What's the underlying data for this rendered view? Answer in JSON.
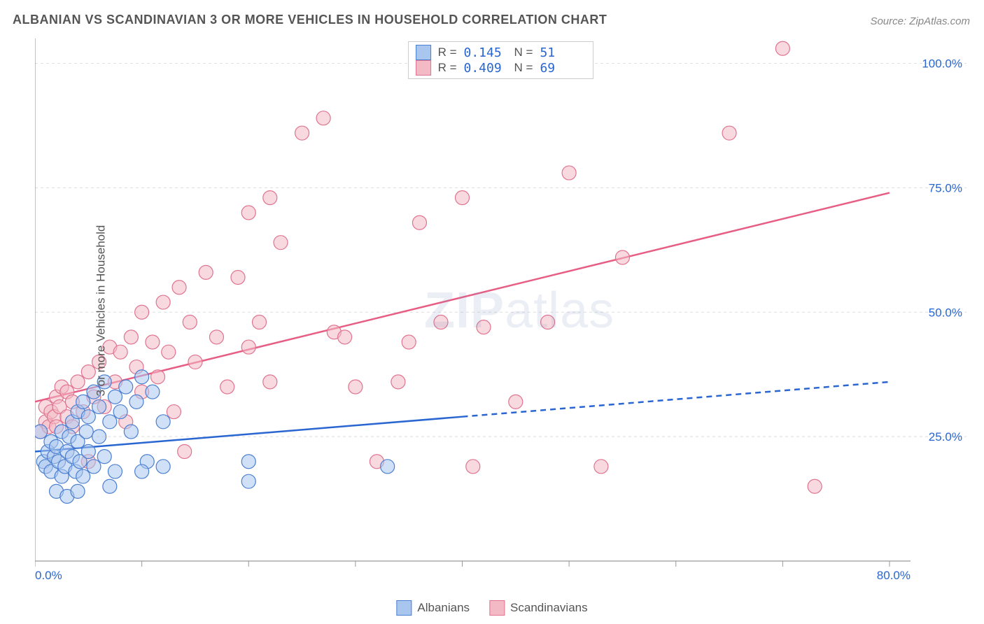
{
  "title": "ALBANIAN VS SCANDINAVIAN 3 OR MORE VEHICLES IN HOUSEHOLD CORRELATION CHART",
  "source": "Source: ZipAtlas.com",
  "ylabel": "3 or more Vehicles in Household",
  "watermark": "ZIPatlas",
  "chart": {
    "type": "scatter",
    "xlim": [
      0,
      80
    ],
    "ylim": [
      0,
      105
    ],
    "x_ticks": [
      0,
      10,
      20,
      30,
      40,
      50,
      60,
      70,
      80
    ],
    "x_tick_labels": {
      "0": "0.0%",
      "80": "80.0%"
    },
    "y_ticks": [
      25,
      50,
      75,
      100
    ],
    "y_tick_labels": {
      "25": "25.0%",
      "50": "50.0%",
      "75": "75.0%",
      "100": "100.0%"
    },
    "grid_color": "#dddddd",
    "axis_color": "#999999",
    "label_color": "#2966d1",
    "label_fontsize": 17,
    "background_color": "#ffffff",
    "marker_radius": 10,
    "marker_stroke_width": 1.2,
    "series": [
      {
        "name": "Albanians",
        "fill": "#a9c7ee",
        "fill_opacity": 0.55,
        "stroke": "#4b7fd1",
        "R": "0.145",
        "N": "51",
        "trend": {
          "x1": 0,
          "y1": 22,
          "x2": 80,
          "y2": 36,
          "solid_until_x": 40,
          "stroke": "#2966d1",
          "width": 2.5
        },
        "points": [
          [
            0.5,
            26
          ],
          [
            0.8,
            20
          ],
          [
            1,
            19
          ],
          [
            1.2,
            22
          ],
          [
            1.5,
            24
          ],
          [
            1.5,
            18
          ],
          [
            1.8,
            21
          ],
          [
            2,
            14
          ],
          [
            2,
            23
          ],
          [
            2.2,
            20
          ],
          [
            2.5,
            17
          ],
          [
            2.5,
            26
          ],
          [
            2.8,
            19
          ],
          [
            3,
            22
          ],
          [
            3,
            13
          ],
          [
            3.2,
            25
          ],
          [
            3.5,
            21
          ],
          [
            3.5,
            28
          ],
          [
            3.8,
            18
          ],
          [
            4,
            24
          ],
          [
            4,
            30
          ],
          [
            4.2,
            20
          ],
          [
            4.5,
            32
          ],
          [
            4.5,
            17
          ],
          [
            4.8,
            26
          ],
          [
            5,
            22
          ],
          [
            5,
            29
          ],
          [
            5.5,
            19
          ],
          [
            5.5,
            34
          ],
          [
            6,
            25
          ],
          [
            6,
            31
          ],
          [
            6.5,
            21
          ],
          [
            6.5,
            36
          ],
          [
            7,
            28
          ],
          [
            7.5,
            33
          ],
          [
            7.5,
            18
          ],
          [
            8,
            30
          ],
          [
            8.5,
            35
          ],
          [
            9,
            26
          ],
          [
            9.5,
            32
          ],
          [
            10,
            37
          ],
          [
            10.5,
            20
          ],
          [
            11,
            34
          ],
          [
            12,
            19
          ],
          [
            12,
            28
          ],
          [
            10,
            18
          ],
          [
            7,
            15
          ],
          [
            4,
            14
          ],
          [
            20,
            16
          ],
          [
            20,
            20
          ],
          [
            33,
            19
          ]
        ]
      },
      {
        "name": "Scandinavians",
        "fill": "#f3b9c5",
        "fill_opacity": 0.55,
        "stroke": "#e0738f",
        "R": "0.409",
        "N": "69",
        "trend": {
          "x1": 0,
          "y1": 32,
          "x2": 80,
          "y2": 74,
          "solid_until_x": 80,
          "stroke": "#e85d84",
          "width": 2.5
        },
        "points": [
          [
            0.5,
            26
          ],
          [
            1,
            28
          ],
          [
            1,
            31
          ],
          [
            1.3,
            27
          ],
          [
            1.5,
            30
          ],
          [
            1.8,
            29
          ],
          [
            2,
            33
          ],
          [
            2,
            27
          ],
          [
            2.3,
            31
          ],
          [
            2.5,
            35
          ],
          [
            3,
            29
          ],
          [
            3,
            34
          ],
          [
            3.5,
            32
          ],
          [
            3.5,
            27
          ],
          [
            4,
            36
          ],
          [
            4.5,
            30
          ],
          [
            5,
            38
          ],
          [
            5,
            20
          ],
          [
            5.5,
            33
          ],
          [
            6,
            40
          ],
          [
            6.5,
            31
          ],
          [
            7,
            43
          ],
          [
            7.5,
            36
          ],
          [
            8,
            42
          ],
          [
            8.5,
            28
          ],
          [
            9,
            45
          ],
          [
            9.5,
            39
          ],
          [
            10,
            50
          ],
          [
            10,
            34
          ],
          [
            11,
            44
          ],
          [
            11.5,
            37
          ],
          [
            12,
            52
          ],
          [
            12.5,
            42
          ],
          [
            13,
            30
          ],
          [
            13.5,
            55
          ],
          [
            14,
            22
          ],
          [
            14.5,
            48
          ],
          [
            15,
            40
          ],
          [
            16,
            58
          ],
          [
            17,
            45
          ],
          [
            18,
            35
          ],
          [
            19,
            57
          ],
          [
            20,
            43
          ],
          [
            20,
            70
          ],
          [
            21,
            48
          ],
          [
            22,
            36
          ],
          [
            22,
            73
          ],
          [
            23,
            64
          ],
          [
            25,
            86
          ],
          [
            27,
            89
          ],
          [
            28,
            46
          ],
          [
            29,
            45
          ],
          [
            30,
            35
          ],
          [
            32,
            20
          ],
          [
            34,
            36
          ],
          [
            35,
            44
          ],
          [
            36,
            68
          ],
          [
            38,
            48
          ],
          [
            40,
            73
          ],
          [
            41,
            19
          ],
          [
            42,
            47
          ],
          [
            45,
            32
          ],
          [
            48,
            48
          ],
          [
            50,
            78
          ],
          [
            53,
            19
          ],
          [
            55,
            61
          ],
          [
            65,
            86
          ],
          [
            70,
            103
          ],
          [
            73,
            15
          ]
        ]
      }
    ]
  },
  "bottom_legend": [
    {
      "label": "Albanians",
      "fill": "#a9c7ee",
      "stroke": "#4b7fd1"
    },
    {
      "label": "Scandinavians",
      "fill": "#f3b9c5",
      "stroke": "#e0738f"
    }
  ]
}
